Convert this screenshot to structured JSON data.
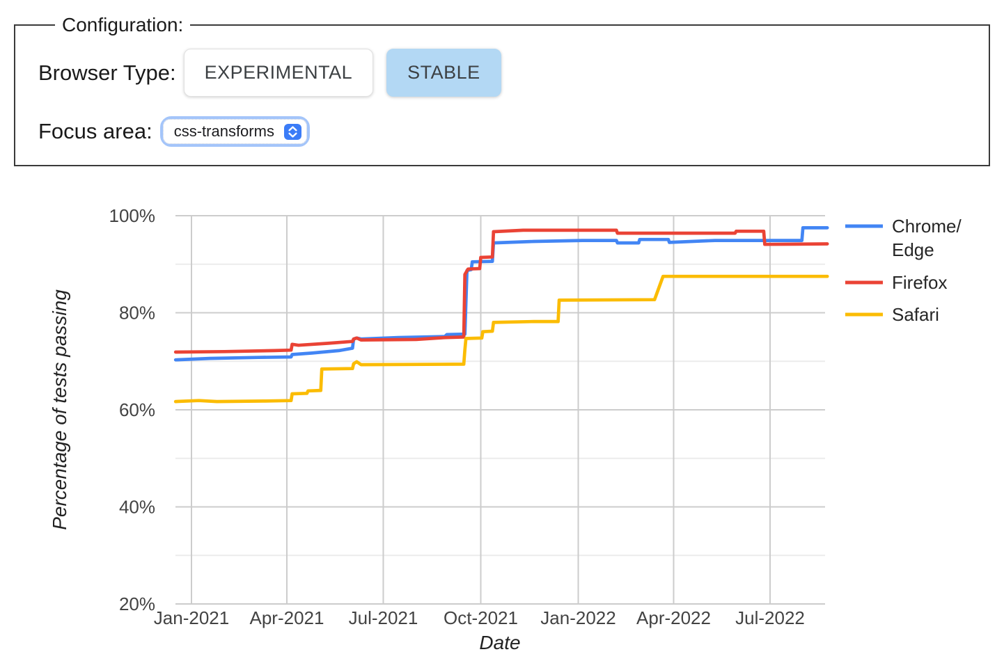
{
  "config_panel": {
    "legend": "Configuration:",
    "browser_type": {
      "label": "Browser Type:",
      "options": [
        {
          "label": "EXPERIMENTAL",
          "selected": false
        },
        {
          "label": "STABLE",
          "selected": true
        }
      ]
    },
    "focus_area": {
      "label": "Focus area:",
      "value": "css-transforms"
    }
  },
  "colors": {
    "stable_button_bg": "#b3d8f4",
    "button_border": "#e0e0e0",
    "button_text": "#3c4043",
    "label_text": "#1a1a1a",
    "select_ring": "#a4c5fa",
    "stepper_bg": "#3b7cf7",
    "chrome_edge": "#4285f4",
    "firefox": "#ea4335",
    "safari": "#fbbc04",
    "gridline_major": "#cccccc",
    "gridline_minor": "#ececec",
    "tick_label": "#434343",
    "axis_title": "#222222",
    "legend_text": "#262626"
  },
  "chart_data": {
    "type": "line",
    "title": "",
    "xlabel": "Date",
    "ylabel": "Percentage of tests passing",
    "ylim": [
      20,
      100
    ],
    "grid": true,
    "legend_position": "right",
    "y_tick_values": [
      100,
      80,
      60,
      40,
      20
    ],
    "y_tick_labels": [
      "100%",
      "80%",
      "60%",
      "40%",
      "20%"
    ],
    "y_minor_gridlines": [
      90,
      70,
      50,
      30
    ],
    "x_range": [
      "2020-12-17",
      "2022-08-24"
    ],
    "x_ticks": [
      {
        "date": "2021-01-01",
        "label": "Jan-2021"
      },
      {
        "date": "2021-04-01",
        "label": "Apr-2021"
      },
      {
        "date": "2021-07-01",
        "label": "Jul-2021"
      },
      {
        "date": "2021-10-01",
        "label": "Oct-2021"
      },
      {
        "date": "2022-01-01",
        "label": "Jan-2022"
      },
      {
        "date": "2022-04-01",
        "label": "Apr-2022"
      },
      {
        "date": "2022-07-01",
        "label": "Jul-2022"
      }
    ],
    "series": [
      {
        "name": "Chrome/Edge",
        "legend_lines": [
          "Chrome/",
          "Edge"
        ],
        "color_key": "chrome_edge",
        "points": [
          [
            "2020-12-17",
            70.3
          ],
          [
            "2021-01-18",
            70.6
          ],
          [
            "2021-03-05",
            70.8
          ],
          [
            "2021-04-05",
            70.9
          ],
          [
            "2021-04-06",
            71.4
          ],
          [
            "2021-04-25",
            71.7
          ],
          [
            "2021-05-20",
            72.2
          ],
          [
            "2021-06-02",
            72.7
          ],
          [
            "2021-06-03",
            74.6
          ],
          [
            "2021-06-06",
            74.8
          ],
          [
            "2021-06-10",
            74.6
          ],
          [
            "2021-07-15",
            74.9
          ],
          [
            "2021-08-28",
            75.1
          ],
          [
            "2021-08-30",
            75.5
          ],
          [
            "2021-09-16",
            75.6
          ],
          [
            "2021-09-18",
            88.7
          ],
          [
            "2021-09-22",
            88.9
          ],
          [
            "2021-09-23",
            90.5
          ],
          [
            "2021-10-12",
            90.6
          ],
          [
            "2021-10-13",
            94.4
          ],
          [
            "2021-11-20",
            94.7
          ],
          [
            "2022-01-05",
            94.9
          ],
          [
            "2022-02-06",
            94.9
          ],
          [
            "2022-02-07",
            94.4
          ],
          [
            "2022-02-27",
            94.4
          ],
          [
            "2022-02-28",
            95.1
          ],
          [
            "2022-03-27",
            95.1
          ],
          [
            "2022-03-28",
            94.5
          ],
          [
            "2022-05-10",
            94.9
          ],
          [
            "2022-07-31",
            94.9
          ],
          [
            "2022-08-01",
            97.5
          ],
          [
            "2022-08-24",
            97.5
          ]
        ]
      },
      {
        "name": "Firefox",
        "legend_lines": [
          "Firefox"
        ],
        "color_key": "firefox",
        "points": [
          [
            "2020-12-17",
            71.9
          ],
          [
            "2021-02-01",
            72.0
          ],
          [
            "2021-03-20",
            72.2
          ],
          [
            "2021-04-05",
            72.3
          ],
          [
            "2021-04-06",
            73.5
          ],
          [
            "2021-04-12",
            73.3
          ],
          [
            "2021-05-10",
            73.7
          ],
          [
            "2021-06-02",
            74.1
          ],
          [
            "2021-06-03",
            74.6
          ],
          [
            "2021-06-06",
            74.8
          ],
          [
            "2021-06-10",
            74.4
          ],
          [
            "2021-08-01",
            74.5
          ],
          [
            "2021-08-29",
            74.9
          ],
          [
            "2021-09-15",
            75.0
          ],
          [
            "2021-09-16",
            87.9
          ],
          [
            "2021-09-19",
            89.0
          ],
          [
            "2021-09-30",
            89.1
          ],
          [
            "2021-10-01",
            91.4
          ],
          [
            "2021-10-12",
            91.5
          ],
          [
            "2021-10-13",
            96.7
          ],
          [
            "2021-11-10",
            97.0
          ],
          [
            "2022-02-06",
            97.0
          ],
          [
            "2022-02-07",
            96.4
          ],
          [
            "2022-05-29",
            96.4
          ],
          [
            "2022-05-30",
            96.8
          ],
          [
            "2022-06-25",
            96.8
          ],
          [
            "2022-06-26",
            94.1
          ],
          [
            "2022-08-24",
            94.2
          ]
        ]
      },
      {
        "name": "Safari",
        "legend_lines": [
          "Safari"
        ],
        "color_key": "safari",
        "points": [
          [
            "2020-12-17",
            61.7
          ],
          [
            "2021-01-08",
            61.9
          ],
          [
            "2021-01-25",
            61.7
          ],
          [
            "2021-03-10",
            61.8
          ],
          [
            "2021-04-05",
            61.9
          ],
          [
            "2021-04-06",
            63.3
          ],
          [
            "2021-04-20",
            63.4
          ],
          [
            "2021-04-21",
            63.9
          ],
          [
            "2021-05-03",
            64.0
          ],
          [
            "2021-05-04",
            68.4
          ],
          [
            "2021-06-02",
            68.5
          ],
          [
            "2021-06-03",
            69.5
          ],
          [
            "2021-06-06",
            69.9
          ],
          [
            "2021-06-10",
            69.3
          ],
          [
            "2021-09-15",
            69.4
          ],
          [
            "2021-09-16",
            72.4
          ],
          [
            "2021-09-17",
            74.7
          ],
          [
            "2021-10-02",
            74.8
          ],
          [
            "2021-10-03",
            76.1
          ],
          [
            "2021-10-12",
            76.2
          ],
          [
            "2021-10-13",
            78.0
          ],
          [
            "2021-11-20",
            78.2
          ],
          [
            "2021-12-13",
            78.2
          ],
          [
            "2021-12-14",
            82.6
          ],
          [
            "2022-03-14",
            82.7
          ],
          [
            "2022-03-22",
            87.5
          ],
          [
            "2022-08-24",
            87.5
          ]
        ]
      }
    ]
  }
}
